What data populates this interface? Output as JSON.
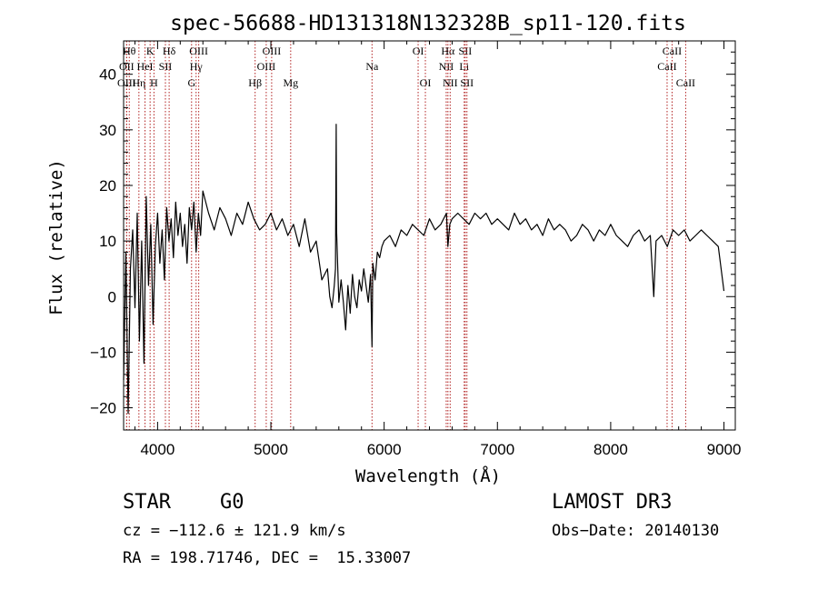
{
  "chart_data": {
    "type": "line",
    "title": "spec-56688-HD131318N132328B_sp11-120.fits",
    "xlabel": "Wavelength (Å)",
    "ylabel": "Flux (relative)",
    "xlim": [
      3700,
      9100
    ],
    "ylim": [
      -24,
      46
    ],
    "xticks": [
      4000,
      5000,
      6000,
      7000,
      8000,
      9000
    ],
    "yticks": [
      -20,
      -10,
      0,
      10,
      20,
      30,
      40
    ],
    "grid": false,
    "line_color": "#000000",
    "marker_color": "#b22222",
    "series": [
      {
        "x": [
          3700,
          3720,
          3740,
          3760,
          3780,
          3800,
          3820,
          3840,
          3860,
          3880,
          3900,
          3920,
          3940,
          3960,
          3980,
          4000,
          4020,
          4040,
          4060,
          4080,
          4100,
          4120,
          4140,
          4160,
          4180,
          4200,
          4220,
          4240,
          4260,
          4280,
          4300,
          4320,
          4340,
          4360,
          4380,
          4400,
          4450,
          4500,
          4550,
          4600,
          4650,
          4700,
          4750,
          4800,
          4850,
          4900,
          4950,
          5000,
          5050,
          5100,
          5150,
          5200,
          5250,
          5300,
          5350,
          5400,
          5450,
          5500,
          5520,
          5540,
          5560,
          5570,
          5577,
          5580,
          5600,
          5620,
          5640,
          5660,
          5680,
          5700,
          5720,
          5740,
          5760,
          5780,
          5800,
          5820,
          5840,
          5860,
          5880,
          5893,
          5900,
          5920,
          5940,
          5960,
          5980,
          6000,
          6050,
          6100,
          6150,
          6200,
          6250,
          6300,
          6350,
          6400,
          6450,
          6500,
          6550,
          6563,
          6580,
          6600,
          6650,
          6700,
          6750,
          6800,
          6850,
          6900,
          6950,
          7000,
          7050,
          7100,
          7150,
          7200,
          7250,
          7300,
          7350,
          7400,
          7450,
          7500,
          7550,
          7600,
          7650,
          7700,
          7750,
          7800,
          7850,
          7900,
          7950,
          8000,
          8050,
          8100,
          8150,
          8200,
          8250,
          8300,
          8350,
          8380,
          8400,
          8450,
          8500,
          8550,
          8600,
          8650,
          8700,
          8750,
          8800,
          8850,
          8900,
          8950,
          9000
        ],
        "y": [
          -15,
          8,
          -21,
          5,
          12,
          -2,
          15,
          -8,
          10,
          -12,
          18,
          2,
          13,
          -5,
          9,
          15,
          6,
          12,
          3,
          16,
          10,
          14,
          7,
          17,
          11,
          15,
          9,
          13,
          6,
          16,
          12,
          17,
          8,
          15,
          11,
          19,
          15,
          12,
          16,
          14,
          11,
          15,
          13,
          17,
          14,
          12,
          13,
          15,
          12,
          14,
          11,
          13,
          9,
          14,
          8,
          10,
          3,
          5,
          0,
          -2,
          2,
          5,
          31,
          12,
          -1,
          3,
          -1,
          -6,
          2,
          -3,
          4,
          0,
          -2,
          3,
          1,
          5,
          2,
          -1,
          4,
          -9,
          6,
          3,
          8,
          7,
          9,
          10,
          11,
          9,
          12,
          11,
          13,
          12,
          11,
          14,
          12,
          13,
          15,
          9,
          13,
          14,
          15,
          14,
          13,
          15,
          14,
          15,
          13,
          14,
          13,
          12,
          15,
          13,
          14,
          12,
          13,
          11,
          14,
          12,
          13,
          12,
          10,
          11,
          13,
          12,
          10,
          12,
          11,
          13,
          11,
          10,
          9,
          11,
          12,
          10,
          11,
          0,
          10,
          11,
          9,
          12,
          11,
          12,
          10,
          11,
          12,
          11,
          10,
          9,
          1
        ]
      }
    ],
    "lines": [
      {
        "wave": 3750,
        "label": "Hθ",
        "row": 0
      },
      {
        "wave": 3727,
        "label": "OII",
        "row": 1
      },
      {
        "wave": 3727,
        "label": "OIII",
        "row": 2
      },
      {
        "wave": 3835,
        "label": "Hη",
        "row": 2
      },
      {
        "wave": 3934,
        "label": "K",
        "row": 0
      },
      {
        "wave": 3889,
        "label": "HeI",
        "row": 1
      },
      {
        "wave": 3968,
        "label": "H",
        "row": 2
      },
      {
        "wave": 4069,
        "label": "SII",
        "row": 1
      },
      {
        "wave": 4102,
        "label": "Hδ",
        "row": 0
      },
      {
        "wave": 4300,
        "label": "G",
        "row": 2
      },
      {
        "wave": 4340,
        "label": "Hγ",
        "row": 1
      },
      {
        "wave": 4363,
        "label": "OIII",
        "row": 0
      },
      {
        "wave": 4861,
        "label": "Hβ",
        "row": 2
      },
      {
        "wave": 4959,
        "label": "OIII",
        "row": 1
      },
      {
        "wave": 5007,
        "label": "OIII",
        "row": 0
      },
      {
        "wave": 5175,
        "label": "Mg",
        "row": 2
      },
      {
        "wave": 5893,
        "label": "Na",
        "row": 1
      },
      {
        "wave": 6300,
        "label": "OI",
        "row": 0
      },
      {
        "wave": 6364,
        "label": "OI",
        "row": 2
      },
      {
        "wave": 6548,
        "label": "NII",
        "row": 1
      },
      {
        "wave": 6563,
        "label": "Hα",
        "row": 0
      },
      {
        "wave": 6583,
        "label": "NII",
        "row": 2
      },
      {
        "wave": 6707,
        "label": "Li",
        "row": 1
      },
      {
        "wave": 6716,
        "label": "SII",
        "row": 0
      },
      {
        "wave": 6731,
        "label": "SII",
        "row": 2
      },
      {
        "wave": 8498,
        "label": "CaII",
        "row": 1
      },
      {
        "wave": 8542,
        "label": "CaII",
        "row": 0
      },
      {
        "wave": 8662,
        "label": "CaII",
        "row": 2
      }
    ]
  },
  "info": {
    "class_label": "STAR",
    "subclass_label": "G0",
    "survey": "LAMOST DR3",
    "cz_line": "cz = −112.6 ± 121.9 km/s",
    "obs_date": "Obs−Date: 20140130",
    "radec_line": "RA = 198.71746, DEC =  15.33007"
  }
}
